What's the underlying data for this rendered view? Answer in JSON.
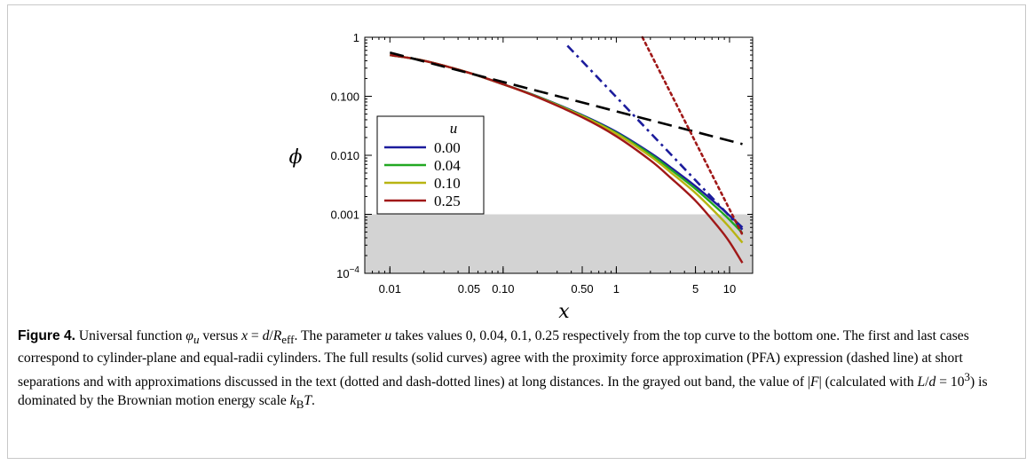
{
  "figure": {
    "label": "Figure 4.",
    "caption_lines": [
      "Universal function φ_u versus x = d/R_eff. The parameter u takes values 0, 0.04, 0.1, 0.25 respectively from the top curve",
      "to the bottom one. The first and last cases correspond to cylinder-plane and equal-radii cylinders. The full results (solid curves)",
      "agree with the proximity force approximation (PFA) expression (dashed line) at short separations and with approximations",
      "discussed in the text (dotted and dash-dotted lines) at long distances. In the grayed out band, the value of |F| (calculated with",
      "L/d = 10^3) is dominated by the Brownian motion energy scale k_B T."
    ],
    "caption_parts": {
      "p1": "Universal function ",
      "phi": "φ",
      "u_sub": "u",
      "p2": " versus ",
      "x": "x",
      "p3": " = ",
      "d": "d",
      "p4": "/",
      "R": "R",
      "eff": "eff",
      "p5": ". The parameter ",
      "u": "u",
      "p6": " takes values 0, 0.04, 0.1, 0.25 respectively from the top curve to the bottom one. The first and last cases correspond to cylinder-plane and equal-radii cylinders. The full results (solid curves) agree with the proximity force approximation (PFA) expression (dashed line) at short separations and with approximations discussed in the text (dotted and dash-dotted lines) at long distances. In the grayed out band, the value of |",
      "F": "F",
      "p7": "| (calculated with ",
      "L": "L",
      "slash": "/",
      "d2": "d",
      "p8": " = 10",
      "exp": "3",
      "p9": ") is dominated by the Brownian motion energy scale ",
      "k": "k",
      "B": "B",
      "T": "T",
      "p10": "."
    }
  },
  "chart_data": {
    "type": "line",
    "xlabel": "x",
    "ylabel": "ϕ",
    "x_scale": "log",
    "y_scale": "log",
    "xlim": [
      0.006,
      16
    ],
    "ylim": [
      0.0001,
      1
    ],
    "x_ticks": [
      {
        "value": 0.01,
        "label": "0.01"
      },
      {
        "value": 0.05,
        "label": "0.05"
      },
      {
        "value": 0.1,
        "label": "0.10"
      },
      {
        "value": 0.5,
        "label": "0.50"
      },
      {
        "value": 1,
        "label": "1"
      },
      {
        "value": 5,
        "label": "5"
      },
      {
        "value": 10,
        "label": "10"
      }
    ],
    "y_ticks": [
      {
        "value": 0.0001,
        "label": "10",
        "exp": "−4"
      },
      {
        "value": 0.001,
        "label": "0.001"
      },
      {
        "value": 0.01,
        "label": "0.010"
      },
      {
        "value": 0.1,
        "label": "0.100"
      },
      {
        "value": 1,
        "label": "1"
      }
    ],
    "shaded_band": {
      "y_from": 0.0001,
      "y_to": 0.001,
      "color": "#d3d3d3"
    },
    "legend": {
      "title": "u",
      "placement": "center-left",
      "entries": [
        {
          "label": "0.00",
          "color": "#1c1c9c"
        },
        {
          "label": "0.04",
          "color": "#22a822"
        },
        {
          "label": "0.10",
          "color": "#b8b412"
        },
        {
          "label": "0.25",
          "color": "#a01818"
        }
      ]
    },
    "series": [
      {
        "name": "0.00",
        "style": "solid",
        "color": "#1c1c9c",
        "x": [
          0.01,
          0.02,
          0.05,
          0.1,
          0.2,
          0.5,
          1,
          2,
          3,
          5,
          8,
          10,
          13
        ],
        "y": [
          0.5,
          0.4,
          0.25,
          0.16,
          0.1,
          0.048,
          0.025,
          0.011,
          0.0063,
          0.003,
          0.0014,
          0.00095,
          0.0006
        ]
      },
      {
        "name": "0.04",
        "style": "solid",
        "color": "#22a822",
        "x": [
          0.01,
          0.02,
          0.05,
          0.1,
          0.2,
          0.5,
          1,
          2,
          3,
          5,
          8,
          10,
          13
        ],
        "y": [
          0.5,
          0.4,
          0.25,
          0.16,
          0.099,
          0.047,
          0.024,
          0.0104,
          0.0058,
          0.0027,
          0.00121,
          0.00081,
          0.00048
        ]
      },
      {
        "name": "0.10",
        "style": "solid",
        "color": "#b8b412",
        "x": [
          0.01,
          0.02,
          0.05,
          0.1,
          0.2,
          0.5,
          1,
          2,
          3,
          5,
          8,
          10,
          13
        ],
        "y": [
          0.5,
          0.4,
          0.25,
          0.16,
          0.098,
          0.046,
          0.0232,
          0.0096,
          0.0052,
          0.0023,
          0.00095,
          0.0006,
          0.00033
        ]
      },
      {
        "name": "0.25",
        "style": "solid",
        "color": "#a01818",
        "x": [
          0.01,
          0.02,
          0.05,
          0.1,
          0.2,
          0.5,
          1,
          2,
          3,
          5,
          8,
          10,
          13
        ],
        "y": [
          0.5,
          0.4,
          0.25,
          0.16,
          0.097,
          0.044,
          0.021,
          0.0082,
          0.0042,
          0.0017,
          0.0006,
          0.00034,
          0.00015
        ]
      },
      {
        "name": "",
        "style": "dashed",
        "color": "#000000",
        "x": [
          0.01,
          13
        ],
        "y": [
          0.55,
          0.0155
        ]
      },
      {
        "name": "",
        "style": "dashdot",
        "color": "#1c1c9c",
        "x": [
          0.37,
          13
        ],
        "y": [
          0.72,
          0.00055
        ]
      },
      {
        "name": "",
        "style": "dotted",
        "color": "#a01818",
        "x": [
          1.7,
          13
        ],
        "y": [
          1.0,
          0.00045
        ]
      }
    ]
  }
}
